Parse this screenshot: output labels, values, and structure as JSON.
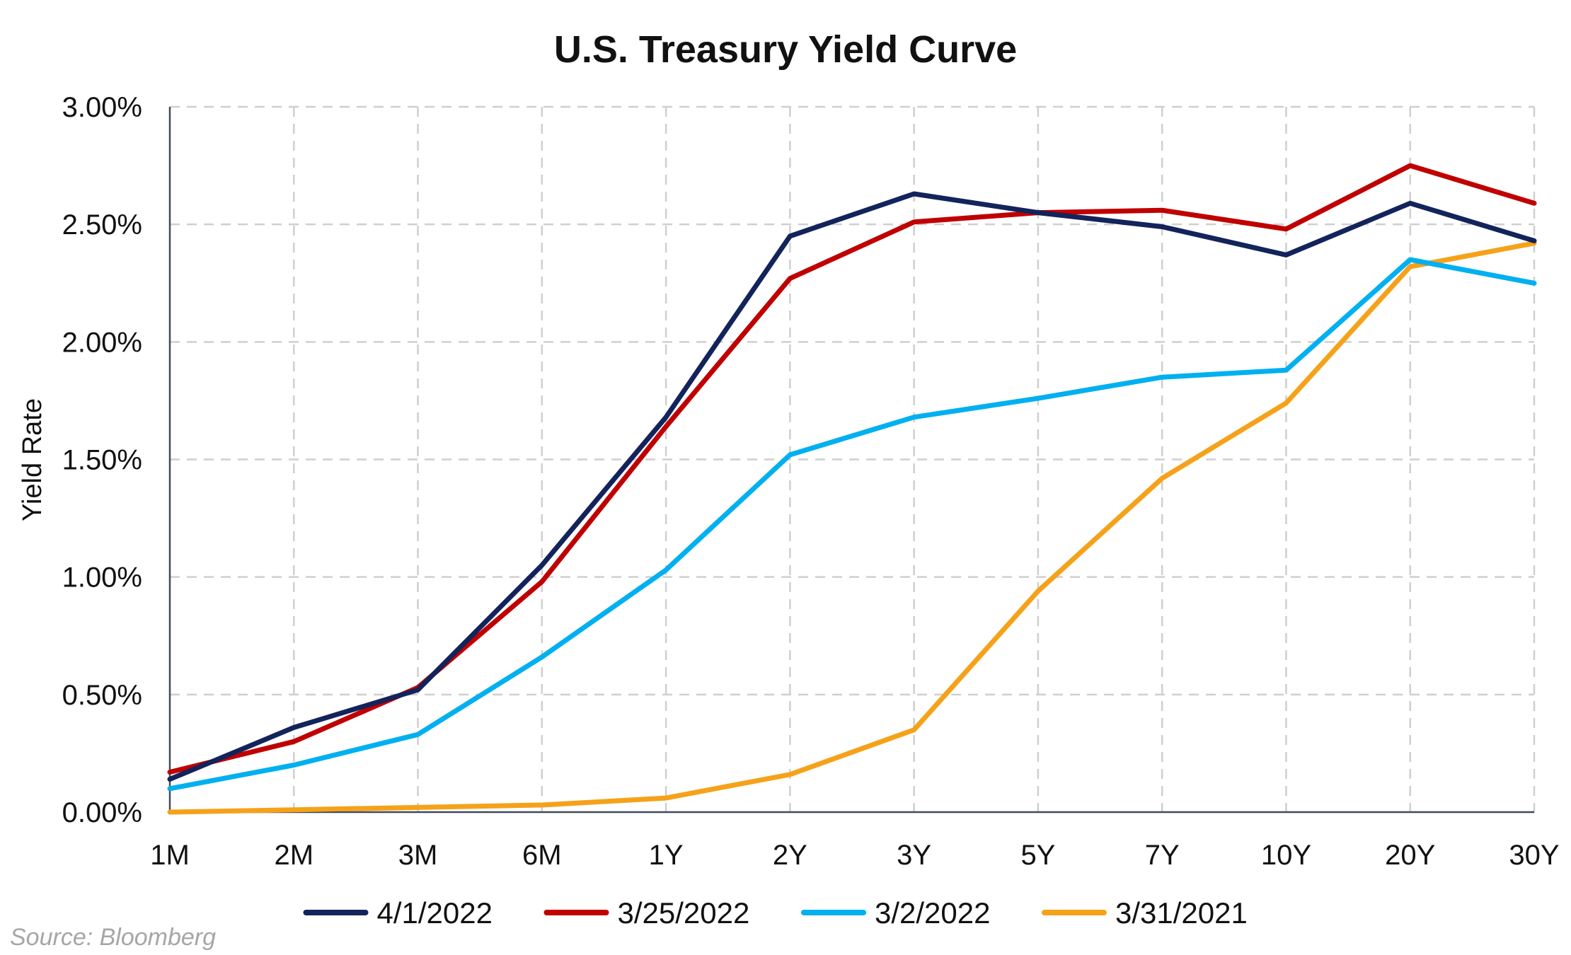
{
  "chart_data": {
    "type": "line",
    "title": "U.S. Treasury Yield Curve",
    "xlabel": "",
    "ylabel": "Yield Rate",
    "categories": [
      "1M",
      "2M",
      "3M",
      "6M",
      "1Y",
      "2Y",
      "3Y",
      "5Y",
      "7Y",
      "10Y",
      "20Y",
      "30Y"
    ],
    "yticks": [
      "0.00%",
      "0.50%",
      "1.00%",
      "1.50%",
      "2.00%",
      "2.50%",
      "3.00%"
    ],
    "ylim": [
      0,
      3.0
    ],
    "grid": true,
    "legend_position": "bottom",
    "series": [
      {
        "name": "4/1/2022",
        "color": "#13235b",
        "values": [
          0.14,
          0.36,
          0.52,
          1.05,
          1.68,
          2.45,
          2.63,
          2.55,
          2.49,
          2.37,
          2.59,
          2.43
        ]
      },
      {
        "name": "3/25/2022",
        "color": "#c00000",
        "values": [
          0.17,
          0.3,
          0.53,
          0.98,
          1.64,
          2.27,
          2.51,
          2.55,
          2.56,
          2.48,
          2.75,
          2.59
        ]
      },
      {
        "name": "3/2/2022",
        "color": "#00b0f0",
        "values": [
          0.1,
          0.2,
          0.33,
          0.66,
          1.03,
          1.52,
          1.68,
          1.76,
          1.85,
          1.88,
          2.35,
          2.25
        ]
      },
      {
        "name": "3/31/2021",
        "color": "#f5a21a",
        "values": [
          0.0,
          0.01,
          0.02,
          0.03,
          0.06,
          0.16,
          0.35,
          0.94,
          1.42,
          1.74,
          2.32,
          2.42
        ]
      }
    ]
  },
  "footer": {
    "source": "Source: Bloomberg"
  }
}
